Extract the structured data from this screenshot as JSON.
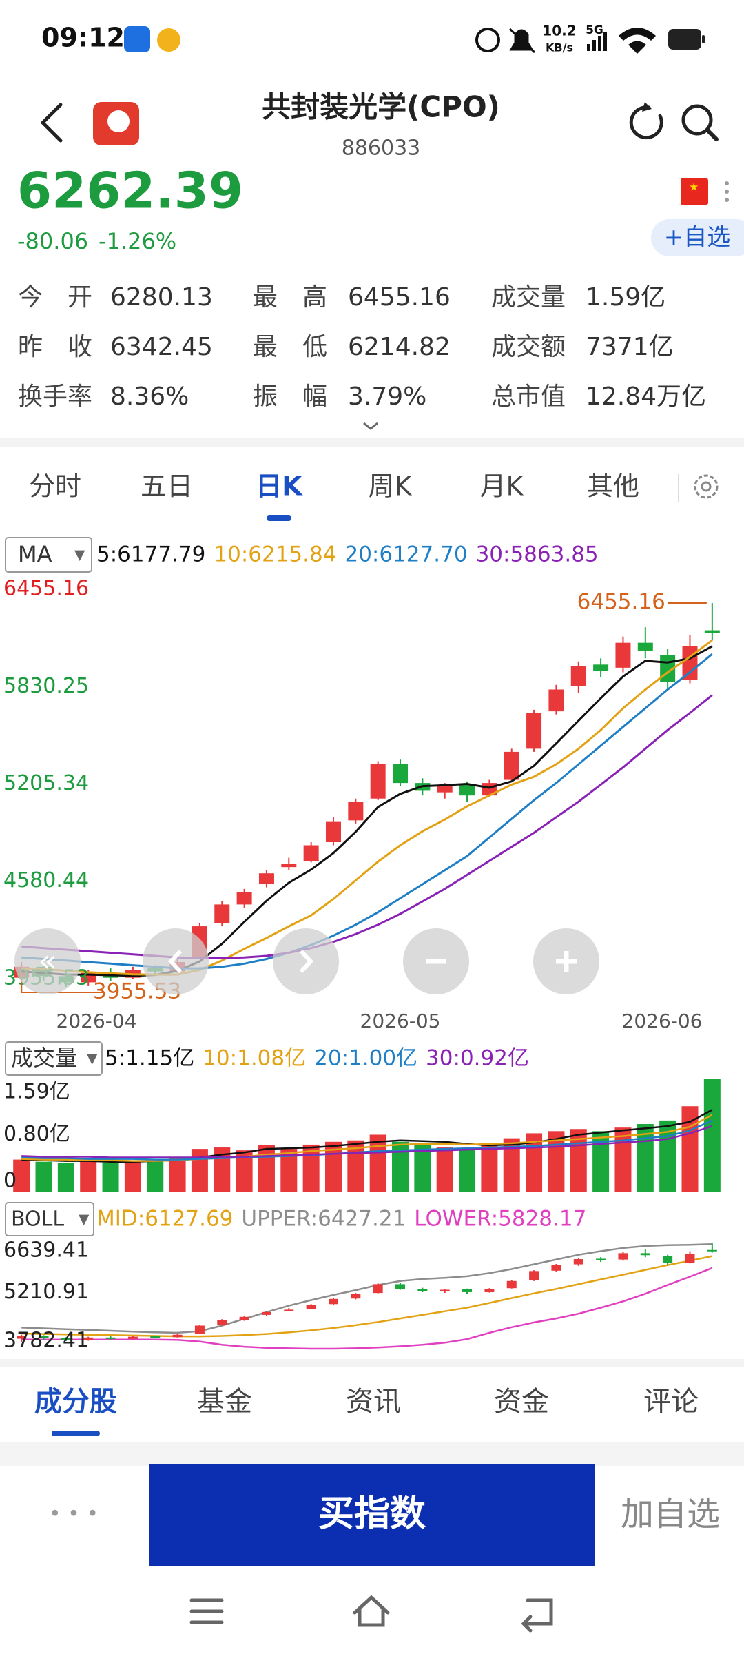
{
  "status_bar": {
    "time": "09:12",
    "net_speed": "10.2",
    "net_unit": "KB/s",
    "network": "5G"
  },
  "header": {
    "title": "共封装光学(CPO)",
    "code": "886033"
  },
  "quote": {
    "price": "6262.39",
    "change": "-80.06",
    "change_pct": "-1.26%",
    "watch_button": "+自选",
    "stats": [
      {
        "label": "今　开",
        "value": "6280.13"
      },
      {
        "label": "最　高",
        "value": "6455.16"
      },
      {
        "label": "成交量",
        "value": "1.59亿"
      },
      {
        "label": "昨　收",
        "value": "6342.45"
      },
      {
        "label": "最　低",
        "value": "6214.82"
      },
      {
        "label": "成交额",
        "value": "7371亿"
      },
      {
        "label": "换手率",
        "value": "8.36%"
      },
      {
        "label": "振　幅",
        "value": "3.79%"
      },
      {
        "label": "总市值",
        "value": "12.84万亿"
      }
    ]
  },
  "period_tabs": {
    "items": [
      "分时",
      "五日",
      "日K",
      "周K",
      "月K",
      "其他"
    ],
    "selected": 2
  },
  "kline": {
    "indicator": "MA",
    "up_color": "#e8383a",
    "down_color": "#1aa83c",
    "ylim": [
      3955.53,
      6455.16
    ],
    "yticks": [
      6455.16,
      5830.25,
      5205.34,
      4580.44,
      3955.53
    ],
    "max_label": 6455.16,
    "min_label": 3955.53,
    "dates": [
      "2026-04",
      "2026-05",
      "2026-06"
    ],
    "candles": [
      [
        4050,
        4120,
        4150,
        3955.53
      ],
      [
        4120,
        4060,
        4140,
        4030
      ],
      [
        4060,
        4020,
        4090,
        3990
      ],
      [
        4020,
        4080,
        4100,
        4000
      ],
      [
        4080,
        4050,
        4110,
        4030
      ],
      [
        4050,
        4100,
        4120,
        4040
      ],
      [
        4110,
        4090,
        4130,
        4070
      ],
      [
        4090,
        4150,
        4170,
        4080
      ],
      [
        4180,
        4380,
        4400,
        4170
      ],
      [
        4400,
        4520,
        4540,
        4380
      ],
      [
        4520,
        4600,
        4620,
        4500
      ],
      [
        4650,
        4720,
        4740,
        4630
      ],
      [
        4760,
        4780,
        4820,
        4740
      ],
      [
        4800,
        4900,
        4920,
        4790
      ],
      [
        4920,
        5050,
        5080,
        4900
      ],
      [
        5060,
        5180,
        5200,
        5040
      ],
      [
        5200,
        5420,
        5440,
        5190
      ],
      [
        5420,
        5300,
        5450,
        5280
      ],
      [
        5300,
        5250,
        5330,
        5220
      ],
      [
        5240,
        5280,
        5300,
        5200
      ],
      [
        5290,
        5220,
        5310,
        5180
      ],
      [
        5220,
        5300,
        5320,
        5210
      ],
      [
        5320,
        5500,
        5520,
        5310
      ],
      [
        5520,
        5750,
        5770,
        5500
      ],
      [
        5760,
        5900,
        5930,
        5740
      ],
      [
        5920,
        6050,
        6080,
        5880
      ],
      [
        6060,
        6020,
        6100,
        5980
      ],
      [
        6040,
        6200,
        6240,
        6010
      ],
      [
        6200,
        6150,
        6300,
        6100
      ],
      [
        6120,
        5950,
        6160,
        5900
      ],
      [
        5960,
        6180,
        6250,
        5940
      ],
      [
        6280.13,
        6262.39,
        6455.16,
        6214.82
      ]
    ],
    "ma": [
      {
        "legend": "5:6177.79",
        "color": "#111111",
        "values": [
          4090,
          4080,
          4070,
          4070,
          4066,
          4062,
          4068,
          4094,
          4154,
          4268,
          4408,
          4544,
          4660,
          4744,
          4850,
          4986,
          5146,
          5230,
          5280,
          5286,
          5294,
          5270,
          5310,
          5410,
          5554,
          5700,
          5844,
          5984,
          6084,
          6074,
          6100,
          6177.79
        ]
      },
      {
        "legend": "10:6215.84",
        "color": "#e3a214",
        "values": [
          4110,
          4105,
          4095,
          4085,
          4078,
          4072,
          4070,
          4070,
          4100,
          4160,
          4235,
          4305,
          4380,
          4450,
          4555,
          4675,
          4795,
          4900,
          4990,
          5065,
          5150,
          5220,
          5290,
          5340,
          5420,
          5520,
          5640,
          5780,
          5900,
          6010,
          6110,
          6215.84
        ]
      },
      {
        "legend": "20:6127.70",
        "color": "#1f7fc6",
        "values": [
          4180,
          4170,
          4160,
          4150,
          4140,
          4130,
          4120,
          4110,
          4110,
          4120,
          4140,
          4170,
          4210,
          4260,
          4320,
          4390,
          4470,
          4560,
          4650,
          4740,
          4830,
          4950,
          5070,
          5190,
          5300,
          5420,
          5540,
          5660,
          5780,
          5900,
          6010,
          6127.7
        ]
      },
      {
        "legend": "30:5863.85",
        "color": "#8a22b6",
        "values": [
          4250,
          4240,
          4230,
          4220,
          4210,
          4200,
          4190,
          4180,
          4175,
          4175,
          4180,
          4190,
          4210,
          4240,
          4280,
          4330,
          4390,
          4460,
          4540,
          4620,
          4710,
          4800,
          4890,
          4980,
          5080,
          5180,
          5290,
          5400,
          5520,
          5640,
          5750,
          5863.85
        ]
      }
    ]
  },
  "volume": {
    "indicator": "成交量",
    "ylim": [
      0,
      1.59
    ],
    "yticks": [
      {
        "value": 1.59,
        "label": "1.59亿"
      },
      {
        "value": 0.8,
        "label": "0.80亿"
      },
      0
    ],
    "values": [
      0.45,
      0.42,
      0.4,
      0.43,
      0.41,
      0.44,
      0.45,
      0.48,
      0.6,
      0.62,
      0.58,
      0.65,
      0.6,
      0.66,
      0.7,
      0.72,
      0.8,
      0.7,
      0.65,
      0.62,
      0.6,
      0.68,
      0.75,
      0.82,
      0.85,
      0.88,
      0.85,
      0.9,
      0.95,
      1.0,
      1.2,
      1.59
    ],
    "ma": [
      {
        "legend": "5:1.15亿",
        "color": "#111111",
        "values": [
          0.45,
          0.44,
          0.43,
          0.43,
          0.42,
          0.42,
          0.43,
          0.44,
          0.48,
          0.52,
          0.55,
          0.6,
          0.61,
          0.62,
          0.64,
          0.67,
          0.7,
          0.72,
          0.71,
          0.7,
          0.67,
          0.65,
          0.66,
          0.69,
          0.74,
          0.8,
          0.83,
          0.86,
          0.89,
          0.92,
          0.98,
          1.15
        ]
      },
      {
        "legend": "10:1.08亿",
        "color": "#e3a214",
        "values": [
          0.46,
          0.45,
          0.45,
          0.44,
          0.44,
          0.43,
          0.43,
          0.44,
          0.46,
          0.47,
          0.49,
          0.52,
          0.54,
          0.57,
          0.59,
          0.61,
          0.64,
          0.66,
          0.67,
          0.67,
          0.66,
          0.67,
          0.68,
          0.7,
          0.72,
          0.74,
          0.76,
          0.78,
          0.81,
          0.84,
          0.91,
          1.08
        ]
      },
      {
        "legend": "20:1.00亿",
        "color": "#1f7fc6",
        "values": [
          0.48,
          0.47,
          0.47,
          0.46,
          0.46,
          0.46,
          0.45,
          0.45,
          0.46,
          0.47,
          0.48,
          0.49,
          0.5,
          0.51,
          0.53,
          0.55,
          0.57,
          0.58,
          0.59,
          0.6,
          0.61,
          0.62,
          0.63,
          0.64,
          0.66,
          0.68,
          0.7,
          0.72,
          0.75,
          0.78,
          0.86,
          1.0
        ]
      },
      {
        "legend": "30:0.92亿",
        "color": "#8a22b6",
        "values": [
          0.5,
          0.49,
          0.49,
          0.49,
          0.48,
          0.48,
          0.48,
          0.48,
          0.48,
          0.49,
          0.49,
          0.5,
          0.51,
          0.52,
          0.53,
          0.54,
          0.55,
          0.56,
          0.57,
          0.58,
          0.59,
          0.6,
          0.61,
          0.62,
          0.63,
          0.65,
          0.67,
          0.69,
          0.71,
          0.74,
          0.82,
          0.92
        ]
      }
    ]
  },
  "boll": {
    "indicator": "BOLL",
    "ylim": [
      3782.41,
      6639.41
    ],
    "yticks": [
      6639.41,
      5210.91,
      3782.41
    ],
    "lines": [
      {
        "legend": "MID:6127.69",
        "color": "#e3a214",
        "values": [
          4180,
          4170,
          4160,
          4150,
          4140,
          4130,
          4120,
          4110,
          4110,
          4120,
          4140,
          4170,
          4210,
          4260,
          4320,
          4390,
          4470,
          4560,
          4650,
          4740,
          4830,
          4950,
          5070,
          5190,
          5300,
          5420,
          5540,
          5660,
          5780,
          5900,
          6010,
          6127.69
        ]
      },
      {
        "legend": "UPPER:6427.21",
        "color": "#8c8c8c",
        "values": [
          4330,
          4310,
          4290,
          4270,
          4250,
          4230,
          4210,
          4200,
          4240,
          4380,
          4550,
          4720,
          4880,
          5020,
          5150,
          5270,
          5400,
          5500,
          5550,
          5580,
          5620,
          5700,
          5800,
          5920,
          6040,
          6160,
          6250,
          6330,
          6380,
          6400,
          6410,
          6427.21
        ]
      },
      {
        "legend": "LOWER:5828.17",
        "color": "#e040c0",
        "values": [
          4030,
          4030,
          4030,
          4030,
          4030,
          4030,
          4030,
          4020,
          3980,
          3900,
          3850,
          3820,
          3810,
          3800,
          3800,
          3810,
          3830,
          3860,
          3900,
          3950,
          4040,
          4200,
          4340,
          4460,
          4560,
          4680,
          4830,
          4990,
          5180,
          5400,
          5610,
          5828.17
        ]
      }
    ]
  },
  "bottom_tabs": {
    "items": [
      "成分股",
      "基金",
      "资讯",
      "资金",
      "评论"
    ],
    "selected": 0
  },
  "actions": {
    "more": "• • •",
    "buy": "买指数",
    "watch": "加自选"
  }
}
